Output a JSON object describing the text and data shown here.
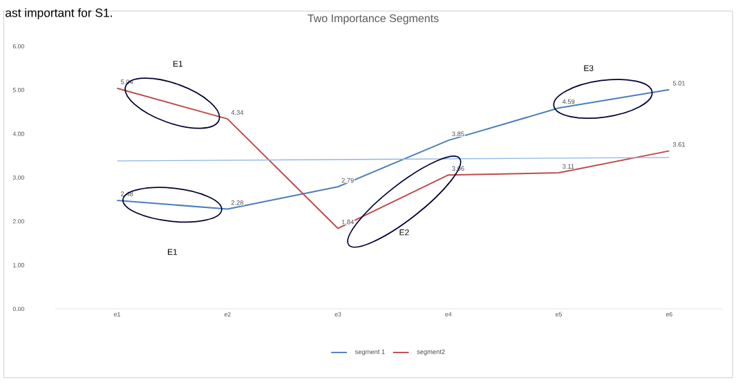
{
  "chart_data": {
    "type": "line",
    "title": "Two Importance Segments",
    "categories": [
      "e1",
      "e2",
      "e3",
      "e4",
      "e5",
      "e6"
    ],
    "series": [
      {
        "name": "segment 1",
        "color": "#4a7ebb",
        "values": [
          2.48,
          2.28,
          2.79,
          3.85,
          4.59,
          5.01
        ],
        "value_labels": [
          "2.48",
          "2.28",
          "2.79",
          "3.85",
          "4.59",
          "5.01"
        ]
      },
      {
        "name": "segment2",
        "color": "#be4b48",
        "values": [
          5.04,
          4.34,
          1.84,
          3.06,
          3.11,
          3.61
        ],
        "value_labels": [
          "5.04",
          "4.34",
          "1.84",
          "3.06",
          "3.11",
          "3.61"
        ]
      },
      {
        "color": "#8fb4e3",
        "values": [
          3.38,
          null,
          null,
          null,
          null,
          3.46
        ]
      }
    ],
    "ylim": [
      0,
      6
    ],
    "yticks": [
      {
        "value": 0,
        "label": "0.00"
      },
      {
        "value": 1,
        "label": "1.00"
      },
      {
        "value": 2,
        "label": "2.00"
      },
      {
        "value": 3,
        "label": "3.00"
      },
      {
        "value": 4,
        "label": "4.00"
      },
      {
        "value": 5,
        "label": "5.00"
      },
      {
        "value": 6,
        "label": "6.00"
      }
    ],
    "grid": false,
    "legend": "bottom",
    "marker": "none",
    "line_style": "solid",
    "annotations": [
      "ast important for  S1.",
      "E1",
      "E1",
      "E2",
      "E3"
    ]
  }
}
